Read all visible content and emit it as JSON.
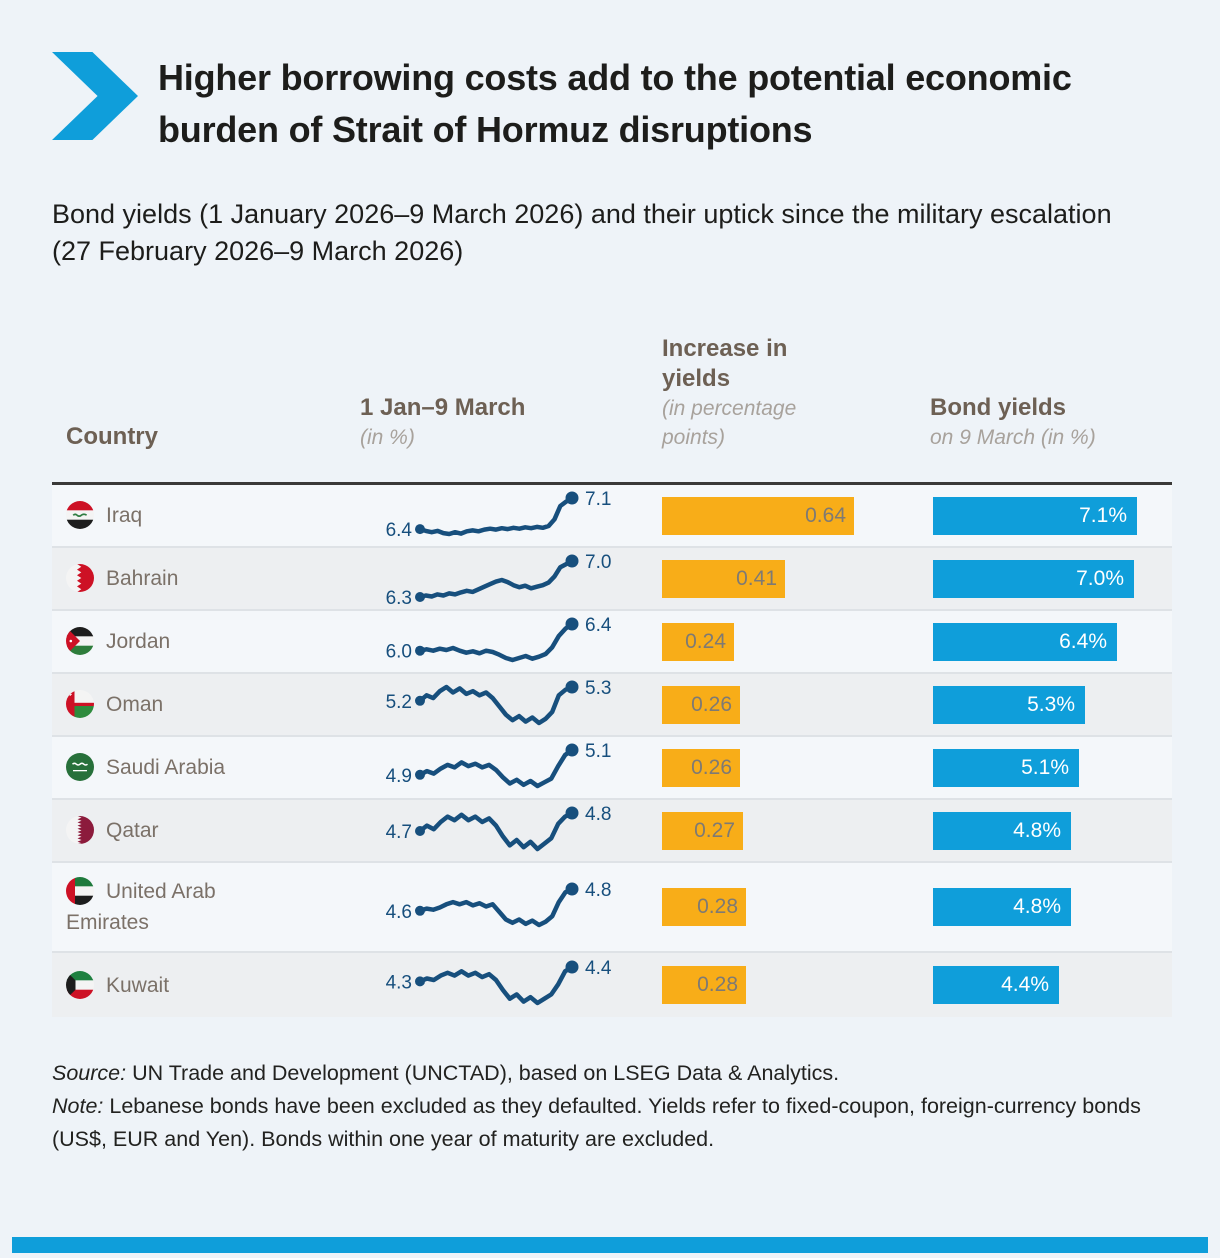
{
  "meta": {
    "accent_blue": "#0f9eda",
    "accent_orange": "#f8ad18",
    "sparkline_navy": "#174f7d"
  },
  "header": {
    "title": "Higher borrowing costs add to the potential economic burden of Strait of Hormuz disruptions",
    "subtitle": "Bond yields (1 January 2026–9 March 2026) and their uptick since the military escalation (27 February 2026–9 March 2026)"
  },
  "table": {
    "columns": {
      "country": {
        "label": "Country"
      },
      "trend": {
        "label": "1 Jan–9 March",
        "sub": "(in %)"
      },
      "increase": {
        "label": "Increase in yields",
        "sub": "(in percentage points)"
      },
      "yield": {
        "label": "Bond yields",
        "sub": "on 9 March (in %)"
      }
    }
  },
  "chart_data": {
    "type": "table",
    "title": "Higher borrowing costs add to the potential economic burden of Strait of Hormuz disruptions",
    "subtitle": "Bond yields (1 January 2026–9 March 2026) and their uptick since the military escalation (27 February 2026–9 March 2026)",
    "columns": [
      "Country",
      "1 Jan–9 March (in %)",
      "Increase in yields (in percentage points)",
      "Bond yields on 9 March (in %)"
    ],
    "rows": [
      {
        "country": "Iraq",
        "flag": "iq",
        "start_value": 6.4,
        "end_value": 7.1,
        "increase_pp": 0.64,
        "yield_9_march_pct": 7.1,
        "start_label": "6.4",
        "end_label": "7.1",
        "increase_label": "0.64",
        "yield_label": "7.1%",
        "sparkline": [
          6.4,
          6.36,
          6.33,
          6.36,
          6.31,
          6.29,
          6.33,
          6.3,
          6.35,
          6.37,
          6.35,
          6.39,
          6.41,
          6.39,
          6.42,
          6.4,
          6.43,
          6.41,
          6.44,
          6.42,
          6.45,
          6.43,
          6.47,
          6.62,
          6.92,
          7.02,
          7.1
        ]
      },
      {
        "country": "Bahrain",
        "flag": "bh",
        "start_value": 6.3,
        "end_value": 7.0,
        "increase_pp": 0.41,
        "yield_9_march_pct": 7.0,
        "start_label": "6.3",
        "end_label": "7.0",
        "increase_label": "0.41",
        "yield_label": "7.0%",
        "sparkline": [
          6.3,
          6.33,
          6.31,
          6.35,
          6.33,
          6.37,
          6.35,
          6.39,
          6.42,
          6.4,
          6.45,
          6.5,
          6.55,
          6.6,
          6.63,
          6.59,
          6.53,
          6.49,
          6.52,
          6.47,
          6.5,
          6.53,
          6.58,
          6.7,
          6.88,
          6.94,
          7.0
        ]
      },
      {
        "country": "Jordan",
        "flag": "jo",
        "start_value": 6.0,
        "end_value": 6.4,
        "increase_pp": 0.24,
        "yield_9_march_pct": 6.4,
        "start_label": "6.0",
        "end_label": "6.4",
        "increase_label": "0.24",
        "yield_label": "6.4%",
        "sparkline": [
          6.0,
          6.02,
          6.0,
          6.03,
          6.01,
          6.04,
          6.0,
          5.97,
          5.99,
          5.96,
          6.0,
          5.98,
          5.94,
          5.89,
          5.86,
          5.89,
          5.92,
          5.88,
          5.91,
          5.95,
          6.05,
          6.22,
          6.33,
          6.4
        ]
      },
      {
        "country": "Oman",
        "flag": "om",
        "start_value": 5.2,
        "end_value": 5.3,
        "increase_pp": 0.26,
        "yield_9_march_pct": 5.3,
        "start_label": "5.2",
        "end_label": "5.3",
        "increase_label": "0.26",
        "yield_label": "5.3%",
        "sparkline": [
          5.2,
          5.24,
          5.22,
          5.27,
          5.3,
          5.26,
          5.29,
          5.25,
          5.27,
          5.24,
          5.26,
          5.22,
          5.16,
          5.1,
          5.06,
          5.09,
          5.05,
          5.08,
          5.04,
          5.07,
          5.12,
          5.24,
          5.28,
          5.3
        ]
      },
      {
        "country": "Saudi Arabia",
        "flag": "sa",
        "start_value": 4.9,
        "end_value": 5.1,
        "increase_pp": 0.26,
        "yield_9_march_pct": 5.1,
        "start_label": "4.9",
        "end_label": "5.1",
        "increase_label": "0.26",
        "yield_label": "5.1%",
        "sparkline": [
          4.9,
          4.93,
          4.91,
          4.95,
          4.98,
          4.96,
          5.0,
          4.97,
          4.99,
          4.96,
          4.98,
          4.94,
          4.88,
          4.83,
          4.86,
          4.82,
          4.85,
          4.81,
          4.84,
          4.87,
          4.97,
          5.06,
          5.1
        ]
      },
      {
        "country": "Qatar",
        "flag": "qa",
        "start_value": 4.7,
        "end_value": 4.8,
        "increase_pp": 0.27,
        "yield_9_march_pct": 4.8,
        "start_label": "4.7",
        "end_label": "4.8",
        "increase_label": "0.27",
        "yield_label": "4.8%",
        "sparkline": [
          4.7,
          4.73,
          4.71,
          4.75,
          4.78,
          4.76,
          4.79,
          4.76,
          4.78,
          4.75,
          4.77,
          4.73,
          4.67,
          4.62,
          4.65,
          4.61,
          4.64,
          4.6,
          4.63,
          4.66,
          4.74,
          4.78,
          4.8
        ]
      },
      {
        "country": "United Arab Emirates",
        "flag": "ae",
        "start_value": 4.6,
        "end_value": 4.8,
        "increase_pp": 0.28,
        "yield_9_march_pct": 4.8,
        "start_label": "4.6",
        "end_label": "4.8",
        "increase_label": "0.28",
        "yield_label": "4.8%",
        "sparkline": [
          4.6,
          4.62,
          4.61,
          4.63,
          4.66,
          4.68,
          4.66,
          4.68,
          4.65,
          4.67,
          4.64,
          4.66,
          4.59,
          4.52,
          4.49,
          4.52,
          4.48,
          4.51,
          4.47,
          4.5,
          4.55,
          4.68,
          4.77,
          4.8
        ]
      },
      {
        "country": "Kuwait",
        "flag": "kw",
        "start_value": 4.3,
        "end_value": 4.4,
        "increase_pp": 0.28,
        "yield_9_march_pct": 4.4,
        "start_label": "4.3",
        "end_label": "4.4",
        "increase_label": "0.28",
        "yield_label": "4.4%",
        "sparkline": [
          4.3,
          4.32,
          4.31,
          4.34,
          4.36,
          4.34,
          4.37,
          4.34,
          4.36,
          4.33,
          4.35,
          4.31,
          4.24,
          4.18,
          4.21,
          4.16,
          4.19,
          4.15,
          4.18,
          4.21,
          4.28,
          4.37,
          4.4
        ]
      }
    ]
  },
  "footer": {
    "source_prefix": "Source:",
    "source_text": " UN Trade and Development (UNCTAD), based on LSEG Data & Analytics.",
    "note_prefix": "Note:",
    "note_text": " Lebanese bonds have been excluded as they defaulted. Yields refer to fixed-coupon, foreign-currency bonds (US$, EUR and Yen). Bonds within one year of maturity are excluded."
  }
}
